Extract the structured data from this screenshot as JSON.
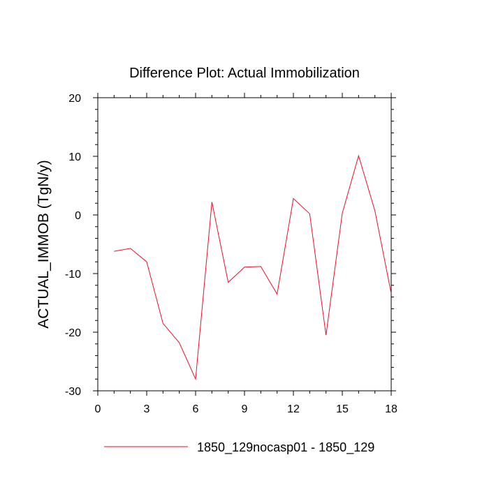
{
  "chart_data": {
    "type": "line",
    "title": "Difference Plot: Actual Immobilization",
    "xlabel": "",
    "ylabel": "ACTUAL_IMMOB  (TgN/y)",
    "xlim": [
      0,
      18
    ],
    "ylim": [
      -30,
      20
    ],
    "x_ticks": [
      0,
      3,
      6,
      9,
      12,
      15,
      18
    ],
    "y_ticks": [
      -30,
      -20,
      -10,
      0,
      10,
      20
    ],
    "x_minor_step": 1,
    "y_minor_step": 2,
    "grid": false,
    "legend_position": "bottom",
    "series": [
      {
        "name": "1850_129nocasp01 - 1850_129",
        "color": "#e8102a",
        "x": [
          1,
          2,
          3,
          4,
          5,
          6,
          7,
          8,
          9,
          10,
          11,
          12,
          13,
          14,
          15,
          16,
          17,
          18
        ],
        "y": [
          -6.2,
          -5.7,
          -8.0,
          -18.5,
          -21.8,
          -28.0,
          2.2,
          -11.5,
          -8.9,
          -8.8,
          -13.5,
          2.8,
          0.2,
          -20.5,
          0.3,
          10.1,
          0.7,
          -13.4
        ]
      }
    ]
  }
}
